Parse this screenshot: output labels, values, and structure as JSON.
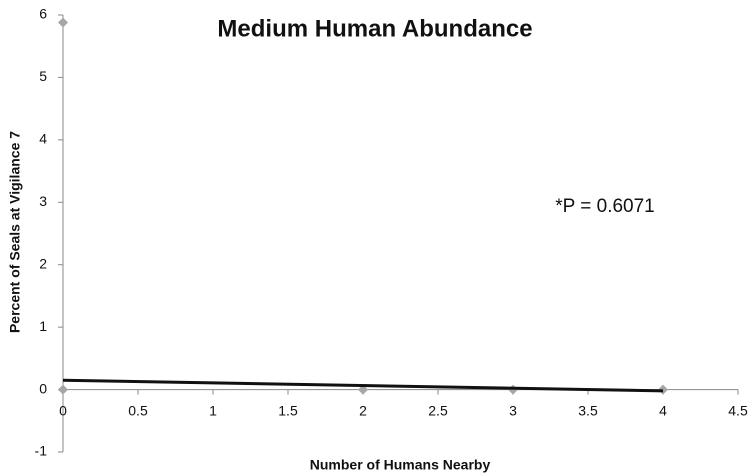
{
  "chart_data": {
    "type": "scatter",
    "title": "Medium Human Abundance",
    "x_label": "Number of Humans Nearby",
    "y_label": "Percent of Seals at Vigilance 7",
    "annotation": "*P = 0.6071",
    "series": [
      {
        "color": "#a6a6a6",
        "x": [
          0,
          0,
          2,
          3,
          4
        ],
        "values": [
          5.88,
          0,
          0,
          0,
          0
        ]
      }
    ],
    "trendline": {
      "color": "#111111",
      "x": [
        0,
        4
      ],
      "values": [
        0.15,
        -0.02
      ]
    },
    "xlim": [
      0,
      4.5
    ],
    "xticks": [
      0,
      0.5,
      1,
      1.5,
      2,
      2.5,
      3,
      3.5,
      4,
      4.5
    ],
    "ylim": [
      -1,
      6
    ],
    "yticks": [
      -1,
      0,
      1,
      2,
      3,
      4,
      5,
      6
    ]
  }
}
